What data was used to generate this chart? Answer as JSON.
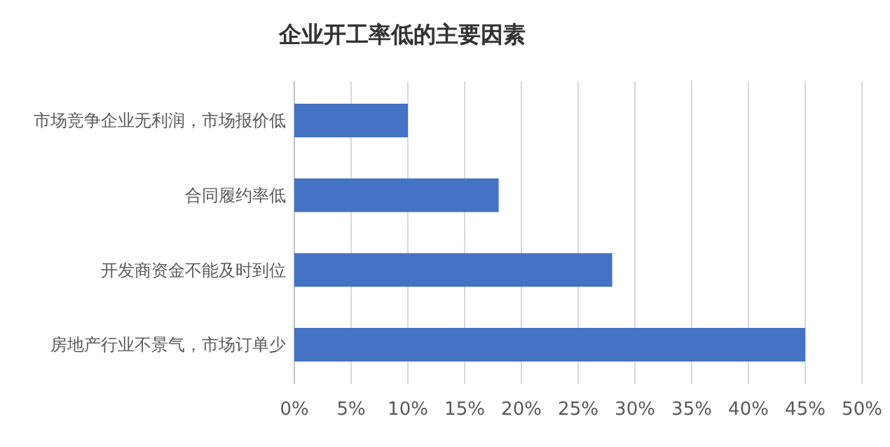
{
  "chart_data": {
    "type": "bar",
    "orientation": "horizontal",
    "title": "企业开工率低的主要因素",
    "categories": [
      "市场竞争企业无利润，市场报价低",
      "合同履约率低",
      "开发商资金不能及时到位",
      "房地产行业不景气，市场订单少"
    ],
    "values": [
      10,
      18,
      28,
      45
    ],
    "color": "#4472c4",
    "xlim": [
      0,
      50
    ],
    "xticks": [
      {
        "value": 0,
        "label": "0%"
      },
      {
        "value": 5,
        "label": "5%"
      },
      {
        "value": 10,
        "label": "10%"
      },
      {
        "value": 15,
        "label": "15%"
      },
      {
        "value": 20,
        "label": "20%"
      },
      {
        "value": 25,
        "label": "25%"
      },
      {
        "value": 30,
        "label": "30%"
      },
      {
        "value": 35,
        "label": "35%"
      },
      {
        "value": 40,
        "label": "40%"
      },
      {
        "value": 45,
        "label": "45%"
      },
      {
        "value": 50,
        "label": "50%"
      }
    ],
    "grid": "x"
  }
}
